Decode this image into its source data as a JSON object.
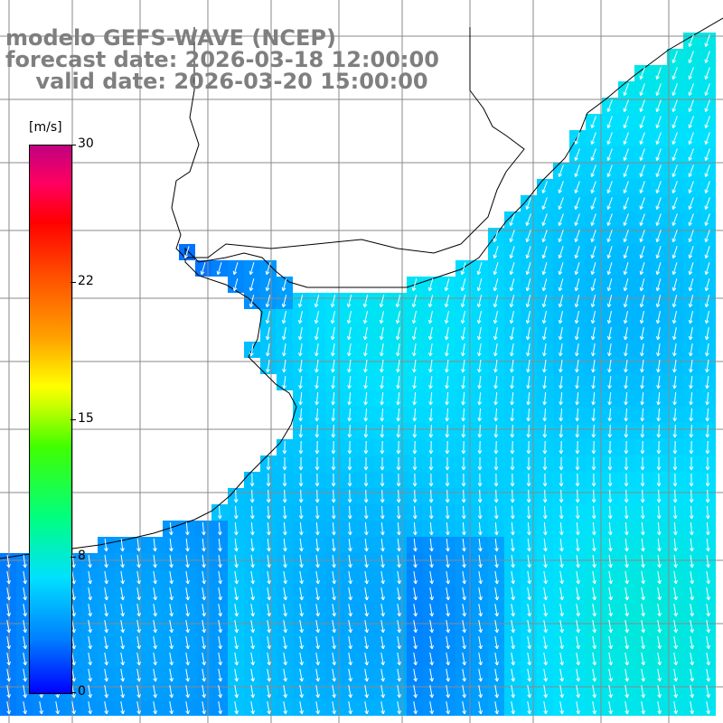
{
  "title": {
    "line1": "modelo GEFS-WAVE (NCEP)",
    "line2": "forecast date: 2026-03-18 12:00:00",
    "line3": "    valid date: 2026-03-20 15:00:00"
  },
  "colorbar": {
    "unit": "[m/s]",
    "min": 0,
    "max": 30,
    "ticks": [
      "30",
      "22",
      "15",
      "8",
      "0"
    ],
    "colors": [
      "#0000ff",
      "#0080ff",
      "#00e0ff",
      "#00ff80",
      "#40ff00",
      "#ffff00",
      "#ffa000",
      "#ff0000",
      "#c00080"
    ]
  },
  "map": {
    "variable": "wind speed and direction",
    "grid_lines": true,
    "land_color": "#ffffff",
    "coastline_color": "#000000",
    "arrow_color": "#ffffff",
    "wind_direction": "from northeast, turning to from north in the south",
    "speed_range_m_s": [
      3,
      8
    ]
  }
}
